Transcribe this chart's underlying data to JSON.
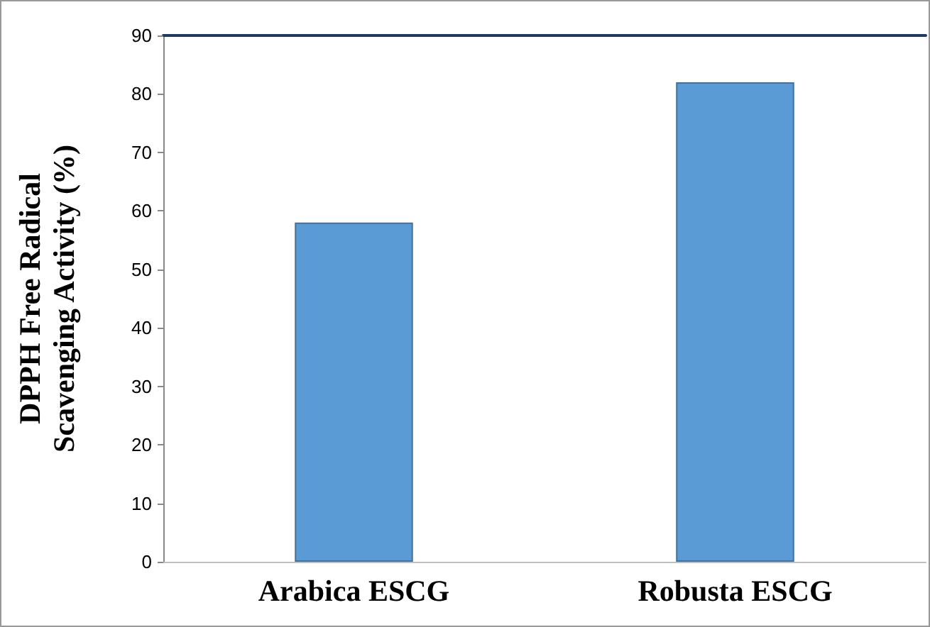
{
  "chart_data": {
    "type": "bar",
    "ylabel": "DPPH Free Radical\nScavenging Activity (%)",
    "categories": [
      "Arabica ESCG",
      "Robusta ESCG"
    ],
    "values": [
      58,
      82
    ],
    "color": "#5b9bd5",
    "ylim": [
      0,
      90
    ],
    "yticks": [
      0,
      10,
      20,
      30,
      40,
      50,
      60,
      70,
      80,
      90
    ],
    "grid": false
  }
}
